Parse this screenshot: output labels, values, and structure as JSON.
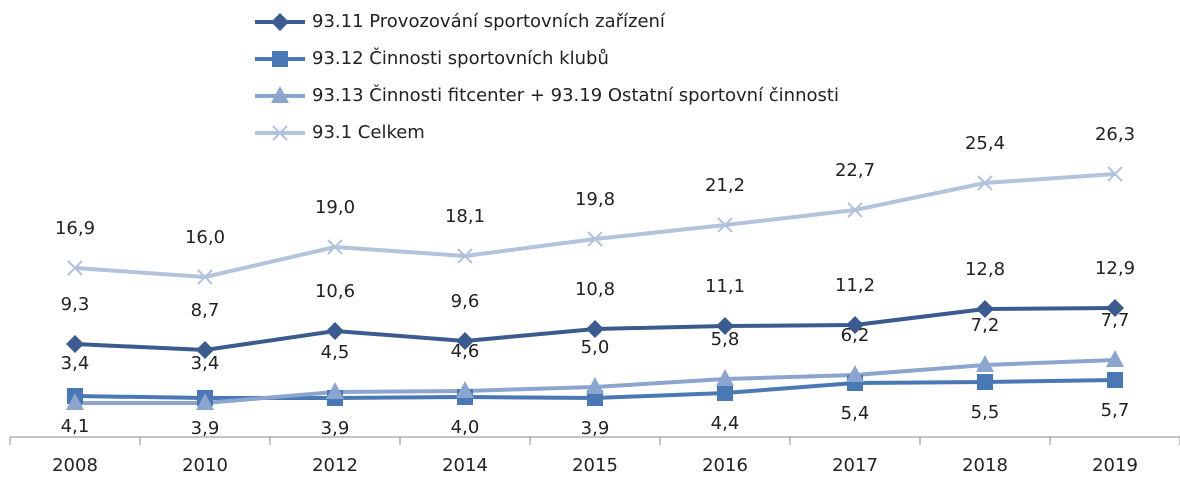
{
  "chart_data": {
    "type": "line",
    "categories": [
      "2008",
      "2010",
      "2012",
      "2014",
      "2015",
      "2016",
      "2017",
      "2018",
      "2019"
    ],
    "ylim": [
      0,
      29
    ],
    "series": [
      {
        "name": "93.11 Provozování sportovních zařízení",
        "color": "#3b5b8e",
        "marker": "diamond",
        "label_position": "above",
        "values": [
          9.3,
          8.7,
          10.6,
          9.6,
          10.8,
          11.1,
          11.2,
          12.8,
          12.9
        ],
        "value_labels": [
          "9,3",
          "8,7",
          "10,6",
          "9,6",
          "10,8",
          "11,1",
          "11,2",
          "12,8",
          "12,9"
        ]
      },
      {
        "name": "93.12 Činnosti sportovních klubů",
        "color": "#4a78b4",
        "marker": "square",
        "label_position": "below",
        "values": [
          4.1,
          3.9,
          3.9,
          4.0,
          3.9,
          4.4,
          5.4,
          5.5,
          5.7
        ],
        "value_labels": [
          "4,1",
          "3,9",
          "3,9",
          "4,0",
          "3,9",
          "4,4",
          "5,4",
          "5,5",
          "5,7"
        ]
      },
      {
        "name": "93.13 Činnosti fitcenter + 93.19 Ostatní sportovní činnosti",
        "color": "#8ba5cf",
        "marker": "triangle",
        "label_position": "above",
        "values": [
          3.4,
          3.4,
          4.5,
          4.6,
          5.0,
          5.8,
          6.2,
          7.2,
          7.7
        ],
        "value_labels": [
          "3,4",
          "3,4",
          "4,5",
          "4,6",
          "5,0",
          "5,8",
          "6,2",
          "7,2",
          "7,7"
        ]
      },
      {
        "name": "93.1 Celkem",
        "color": "#b3c3dc",
        "marker": "x",
        "label_position": "above",
        "values": [
          16.9,
          16.0,
          19.0,
          18.1,
          19.8,
          21.2,
          22.7,
          25.4,
          26.3
        ],
        "value_labels": [
          "16,9",
          "16,0",
          "19,0",
          "18,1",
          "19,8",
          "21,2",
          "22,7",
          "25,4",
          "26,3"
        ]
      }
    ]
  }
}
